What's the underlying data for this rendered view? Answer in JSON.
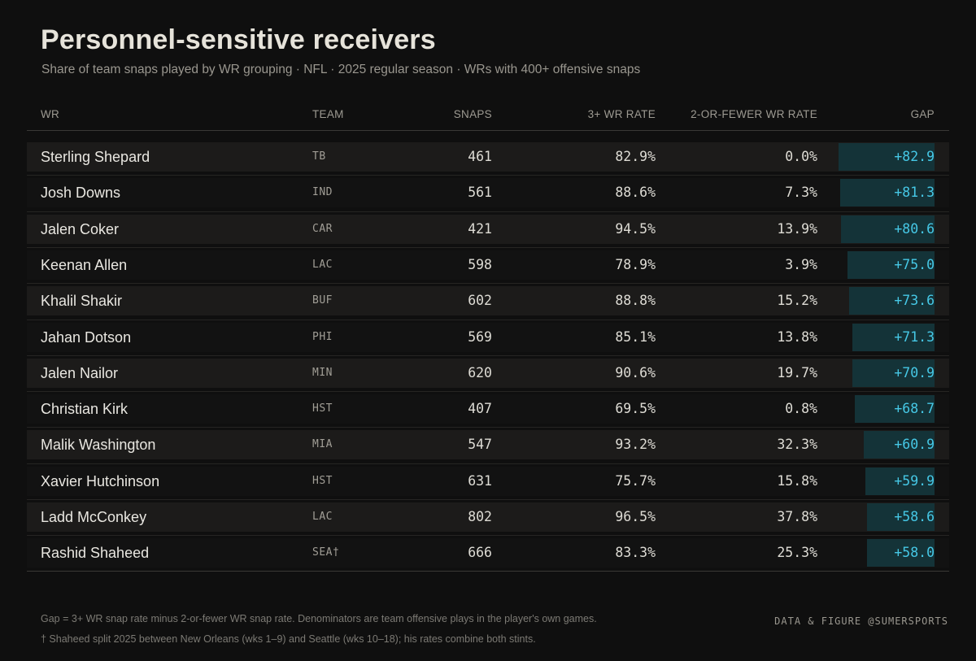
{
  "header": {
    "title": "Personnel-sensitive receivers",
    "subtitle": "Share of team snaps played by WR grouping  ·  NFL  ·  2025 regular season  ·  WRs with 400+ offensive snaps"
  },
  "colors": {
    "gap_bar": "#143338",
    "gap_text": "#46c8e6",
    "row_odd": "#1c1b1a",
    "row_even": "#121212"
  },
  "chart_data": {
    "type": "table",
    "columns": [
      "WR",
      "TEAM",
      "SNAPS",
      "3+ WR RATE",
      "2-OR-FEWER WR RATE",
      "GAP"
    ],
    "rows": [
      {
        "wr": "Sterling Shepard",
        "team": "TB",
        "snaps": "461",
        "rate3": "82.9%",
        "rate2": "0.0%",
        "gap": "+82.9",
        "gap_value": 82.9
      },
      {
        "wr": "Josh Downs",
        "team": "IND",
        "snaps": "561",
        "rate3": "88.6%",
        "rate2": "7.3%",
        "gap": "+81.3",
        "gap_value": 81.3
      },
      {
        "wr": "Jalen Coker",
        "team": "CAR",
        "snaps": "421",
        "rate3": "94.5%",
        "rate2": "13.9%",
        "gap": "+80.6",
        "gap_value": 80.6
      },
      {
        "wr": "Keenan Allen",
        "team": "LAC",
        "snaps": "598",
        "rate3": "78.9%",
        "rate2": "3.9%",
        "gap": "+75.0",
        "gap_value": 75.0
      },
      {
        "wr": "Khalil Shakir",
        "team": "BUF",
        "snaps": "602",
        "rate3": "88.8%",
        "rate2": "15.2%",
        "gap": "+73.6",
        "gap_value": 73.6
      },
      {
        "wr": "Jahan Dotson",
        "team": "PHI",
        "snaps": "569",
        "rate3": "85.1%",
        "rate2": "13.8%",
        "gap": "+71.3",
        "gap_value": 71.3
      },
      {
        "wr": "Jalen Nailor",
        "team": "MIN",
        "snaps": "620",
        "rate3": "90.6%",
        "rate2": "19.7%",
        "gap": "+70.9",
        "gap_value": 70.9
      },
      {
        "wr": "Christian Kirk",
        "team": "HST",
        "snaps": "407",
        "rate3": "69.5%",
        "rate2": "0.8%",
        "gap": "+68.7",
        "gap_value": 68.7
      },
      {
        "wr": "Malik Washington",
        "team": "MIA",
        "snaps": "547",
        "rate3": "93.2%",
        "rate2": "32.3%",
        "gap": "+60.9",
        "gap_value": 60.9
      },
      {
        "wr": "Xavier Hutchinson",
        "team": "HST",
        "snaps": "631",
        "rate3": "75.7%",
        "rate2": "15.8%",
        "gap": "+59.9",
        "gap_value": 59.9
      },
      {
        "wr": "Ladd McConkey",
        "team": "LAC",
        "snaps": "802",
        "rate3": "96.5%",
        "rate2": "37.8%",
        "gap": "+58.6",
        "gap_value": 58.6
      },
      {
        "wr": "Rashid Shaheed",
        "team": "SEA†",
        "snaps": "666",
        "rate3": "83.3%",
        "rate2": "25.3%",
        "gap": "+58.0",
        "gap_value": 58.0
      }
    ]
  },
  "footer": {
    "note1": "Gap = 3+ WR snap rate minus 2-or-fewer WR snap rate. Denominators are team offensive plays in the player's own games.",
    "note2": "† Shaheed split 2025 between New Orleans (wks 1–9) and Seattle (wks 10–18); his rates combine both stints.",
    "credit": "DATA & FIGURE  @SUMERSPORTS"
  }
}
